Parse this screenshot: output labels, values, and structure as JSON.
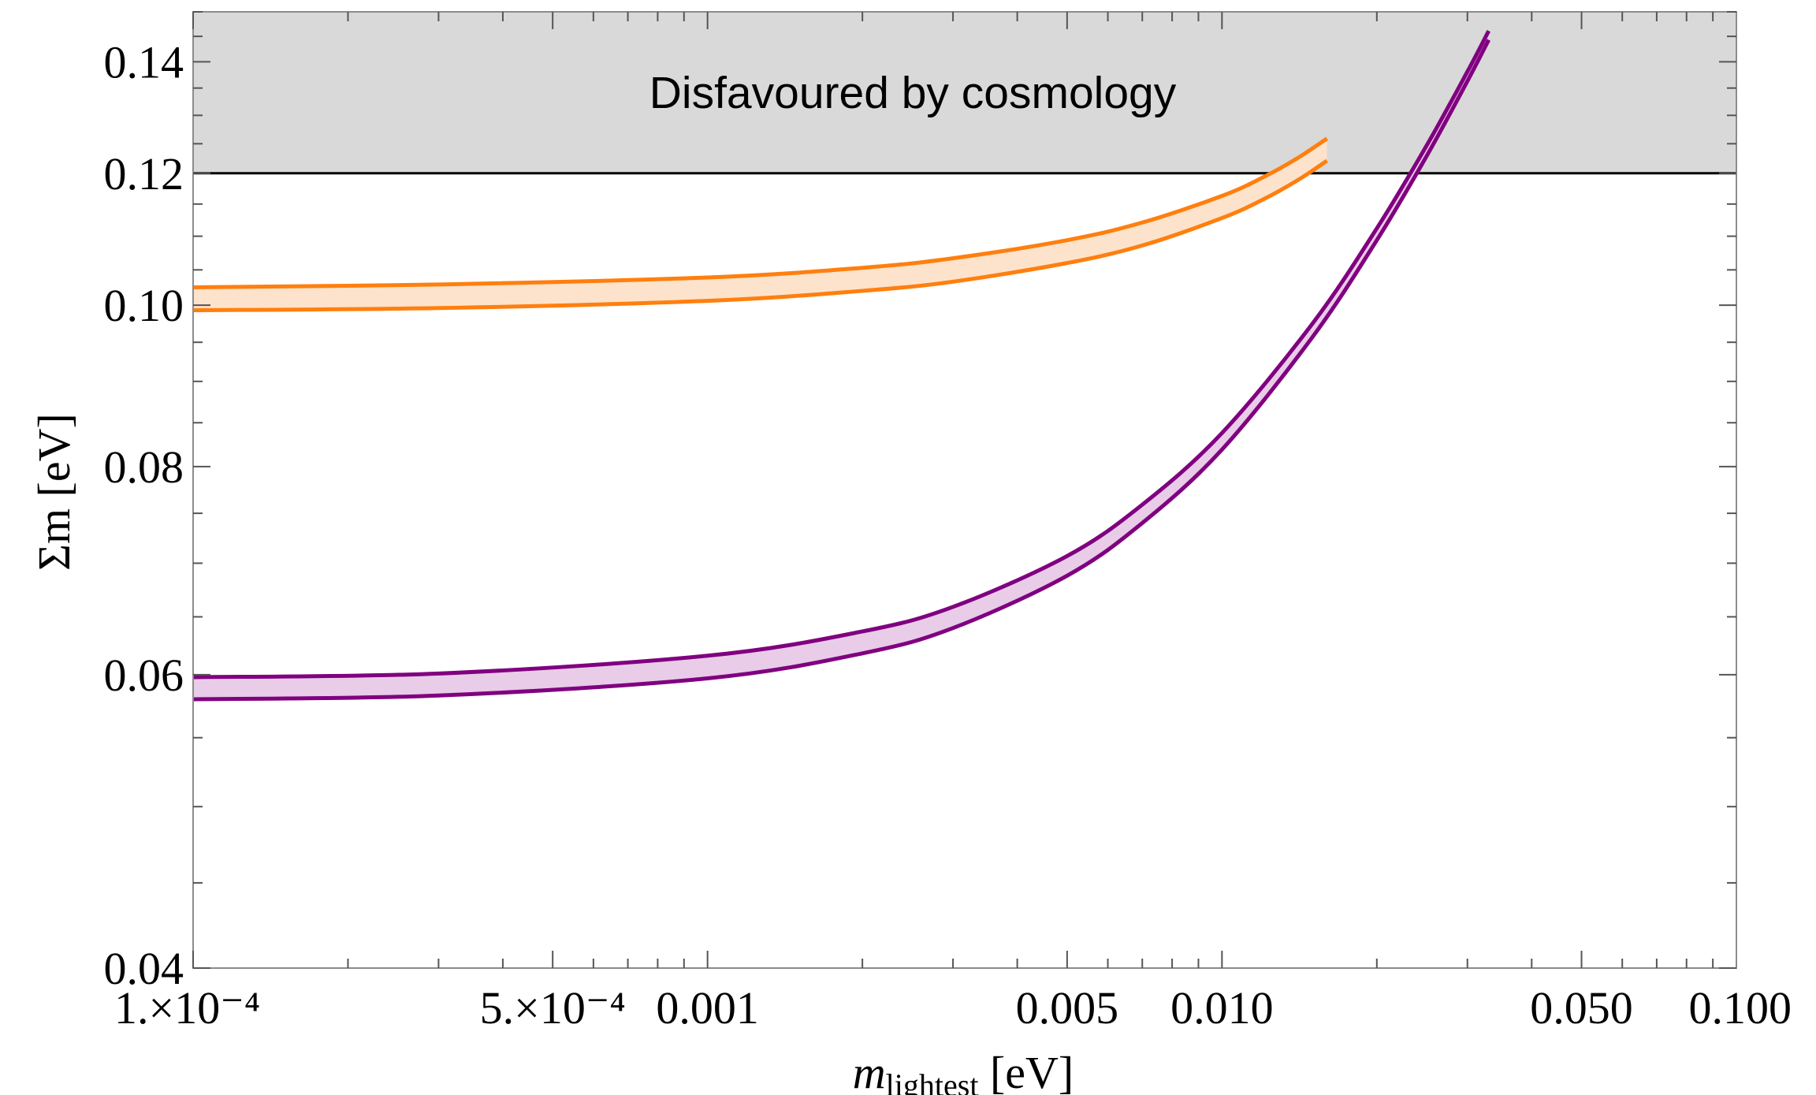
{
  "chart_data": {
    "type": "area",
    "title": "",
    "x_axis": {
      "label_main": "m",
      "label_sub": "lightest",
      "label_unit": " [eV]",
      "scale": "log",
      "range": [
        0.0001,
        0.1
      ],
      "ticks": [
        {
          "value": 0.0001,
          "label": "1.×10⁻⁴"
        },
        {
          "value": 0.0005,
          "label": "5.×10⁻⁴"
        },
        {
          "value": 0.001,
          "label": "0.001"
        },
        {
          "value": 0.005,
          "label": "0.005"
        },
        {
          "value": 0.01,
          "label": "0.010"
        },
        {
          "value": 0.05,
          "label": "0.050"
        },
        {
          "value": 0.1,
          "label": "0.100"
        }
      ]
    },
    "y_axis": {
      "label": "Σm [eV]",
      "scale": "log",
      "range": [
        0.04,
        0.15
      ],
      "ticks": [
        {
          "value": 0.04,
          "label": "0.04"
        },
        {
          "value": 0.06,
          "label": "0.06"
        },
        {
          "value": 0.08,
          "label": "0.08"
        },
        {
          "value": 0.1,
          "label": "0.10"
        },
        {
          "value": 0.12,
          "label": "0.12"
        },
        {
          "value": 0.14,
          "label": "0.14"
        }
      ]
    },
    "excluded_region": {
      "label": "Disfavoured by cosmology",
      "y_min": 0.12,
      "color": "#d9d9d9"
    },
    "series": [
      {
        "color": "#ff7f0e",
        "fill": "#fde3cc",
        "x": [
          0.0001,
          0.0003,
          0.001,
          0.002,
          0.003,
          0.005,
          0.007,
          0.01,
          0.012,
          0.014,
          0.016
        ],
        "upper": [
          0.1025,
          0.1029,
          0.1039,
          0.1053,
          0.1067,
          0.1094,
          0.1121,
          0.1163,
          0.1193,
          0.1225,
          0.1259
        ],
        "lower": [
          0.0993,
          0.0996,
          0.1006,
          0.102,
          0.1033,
          0.106,
          0.1086,
          0.1128,
          0.1157,
          0.1188,
          0.1221
        ]
      },
      {
        "color": "#800080",
        "fill": "#e8cce8",
        "x": [
          0.0001,
          0.0003,
          0.001,
          0.002,
          0.003,
          0.005,
          0.007,
          0.01,
          0.015,
          0.02,
          0.025,
          0.03,
          0.033
        ],
        "upper": [
          0.0598,
          0.0601,
          0.0616,
          0.0637,
          0.0659,
          0.0707,
          0.0759,
          0.0838,
          0.0975,
          0.1112,
          0.1247,
          0.1381,
          0.1461
        ],
        "lower": [
          0.058,
          0.0583,
          0.0597,
          0.0618,
          0.064,
          0.0688,
          0.074,
          0.0819,
          0.0957,
          0.1094,
          0.1229,
          0.1363,
          0.1443
        ]
      }
    ]
  }
}
